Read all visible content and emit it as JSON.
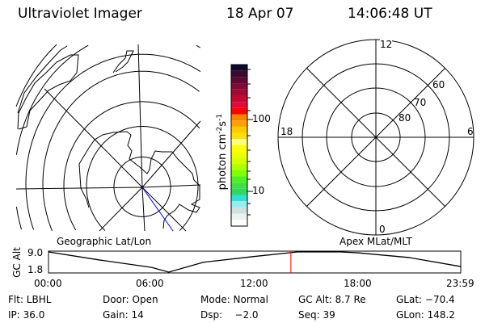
{
  "header": {
    "instrument": "Ultraviolet Imager",
    "date": "18 Apr 07",
    "time": "14:06:48 UT"
  },
  "colorbar": {
    "label_main": "photon cm",
    "label_exp1": "-2",
    "label_s": "s",
    "label_exp2": "-1",
    "ticks": [
      "100",
      "10"
    ],
    "colors": [
      "#0a0a30",
      "#3c0a2c",
      "#5c0a34",
      "#800a34",
      "#a00a34",
      "#c00a34",
      "#e00a3a",
      "#ff0000",
      "#ff8000",
      "#ffa000",
      "#ffc800",
      "#ffe000",
      "#ffff80",
      "#ffff00",
      "#f0ff00",
      "#d8ff00",
      "#b0ff00",
      "#80ff00",
      "#50f020",
      "#40e040",
      "#30d860",
      "#30e0d0",
      "#90f0f0",
      "#d0e0e0",
      "#e8f4f0",
      "#ffffff"
    ]
  },
  "geo_map": {
    "label": "Geographic Lat/Lon",
    "track_color": "#0000ff"
  },
  "apex_map": {
    "label": "Apex MLat/MLT",
    "mlt_labels": {
      "top": "12",
      "right": "6",
      "bottom": "0",
      "left": "18"
    },
    "lat_labels": [
      "80",
      "70",
      "60"
    ]
  },
  "altitude_plot": {
    "ylabel": "GC Alt",
    "yticks": [
      "9.0",
      "1.8"
    ],
    "xticks": [
      "00:00",
      "06:00",
      "12:00",
      "18:00",
      "23:59"
    ],
    "yrange": [
      1.8,
      9.0
    ],
    "x_hours": [
      0,
      3,
      6,
      7,
      9,
      12,
      14.5,
      17,
      18,
      21,
      24
    ],
    "gc_alt_re": [
      9.0,
      6.1,
      3.5,
      1.8,
      5.3,
      7.4,
      9.0,
      9.0,
      8.7,
      7.0,
      3.8
    ],
    "current_time_hours": 14.11,
    "marker_color": "#ff0000"
  },
  "status": {
    "filter": "Flt: LBHL",
    "ip": "IP: 36.0",
    "door": "Door: Open",
    "gain": "Gain: 14",
    "mode": "Mode: Normal",
    "dsp": "Dsp:    −2.0",
    "gc_alt": "GC Alt: 8.7 Re",
    "seq": "Seq: 39",
    "glat": "GLat: −70.4",
    "glon": "GLon: 148.2"
  }
}
